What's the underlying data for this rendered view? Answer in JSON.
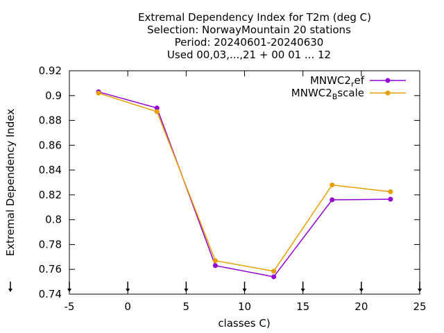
{
  "chart_data": {
    "type": "line",
    "title_lines": [
      "Extremal Dependency Index  for T2m (deg C)",
      "Selection: NorwayMountain     20 stations",
      "Period: 20240601-20240630",
      "Used 00,03,...,21 + 00 01 ... 12"
    ],
    "xlabel": "classes C)",
    "ylabel": "Extremal Dependency Index",
    "xlim": [
      -5,
      25
    ],
    "ylim": [
      0.74,
      0.92
    ],
    "x_ticks": [
      -5,
      0,
      5,
      10,
      15,
      20,
      25
    ],
    "x_tick_labels": [
      "-5",
      "0",
      "5",
      "10",
      "15",
      "20",
      "25"
    ],
    "y_ticks": [
      0.74,
      0.76,
      0.78,
      0.8,
      0.82,
      0.84,
      0.86,
      0.88,
      0.9,
      0.92
    ],
    "y_tick_labels": [
      "0.74",
      "0.76",
      "0.78",
      "0.8",
      "0.82",
      "0.84",
      "0.86",
      "0.88",
      "0.9",
      "0.92"
    ],
    "grid": false,
    "legend_position": "top-right",
    "series": [
      {
        "name_main": "MNWC2",
        "name_sub": "r",
        "name_rest": "ef",
        "color": "#9400d3",
        "x": [
          -2.5,
          2.5,
          7.5,
          12.5,
          17.5,
          22.5
        ],
        "y": [
          0.903,
          0.89,
          0.763,
          0.754,
          0.816,
          0.8165
        ]
      },
      {
        "name_main": "MNWC2",
        "name_sub": "B",
        "name_rest": "scale",
        "color": "#e69f00",
        "x": [
          -2.5,
          2.5,
          7.5,
          12.5,
          17.5,
          22.5
        ],
        "y": [
          0.902,
          0.887,
          0.767,
          0.7585,
          0.828,
          0.8225
        ]
      }
    ],
    "bottom_markers_x": [
      -5,
      0,
      5,
      10,
      15,
      20,
      25
    ]
  }
}
